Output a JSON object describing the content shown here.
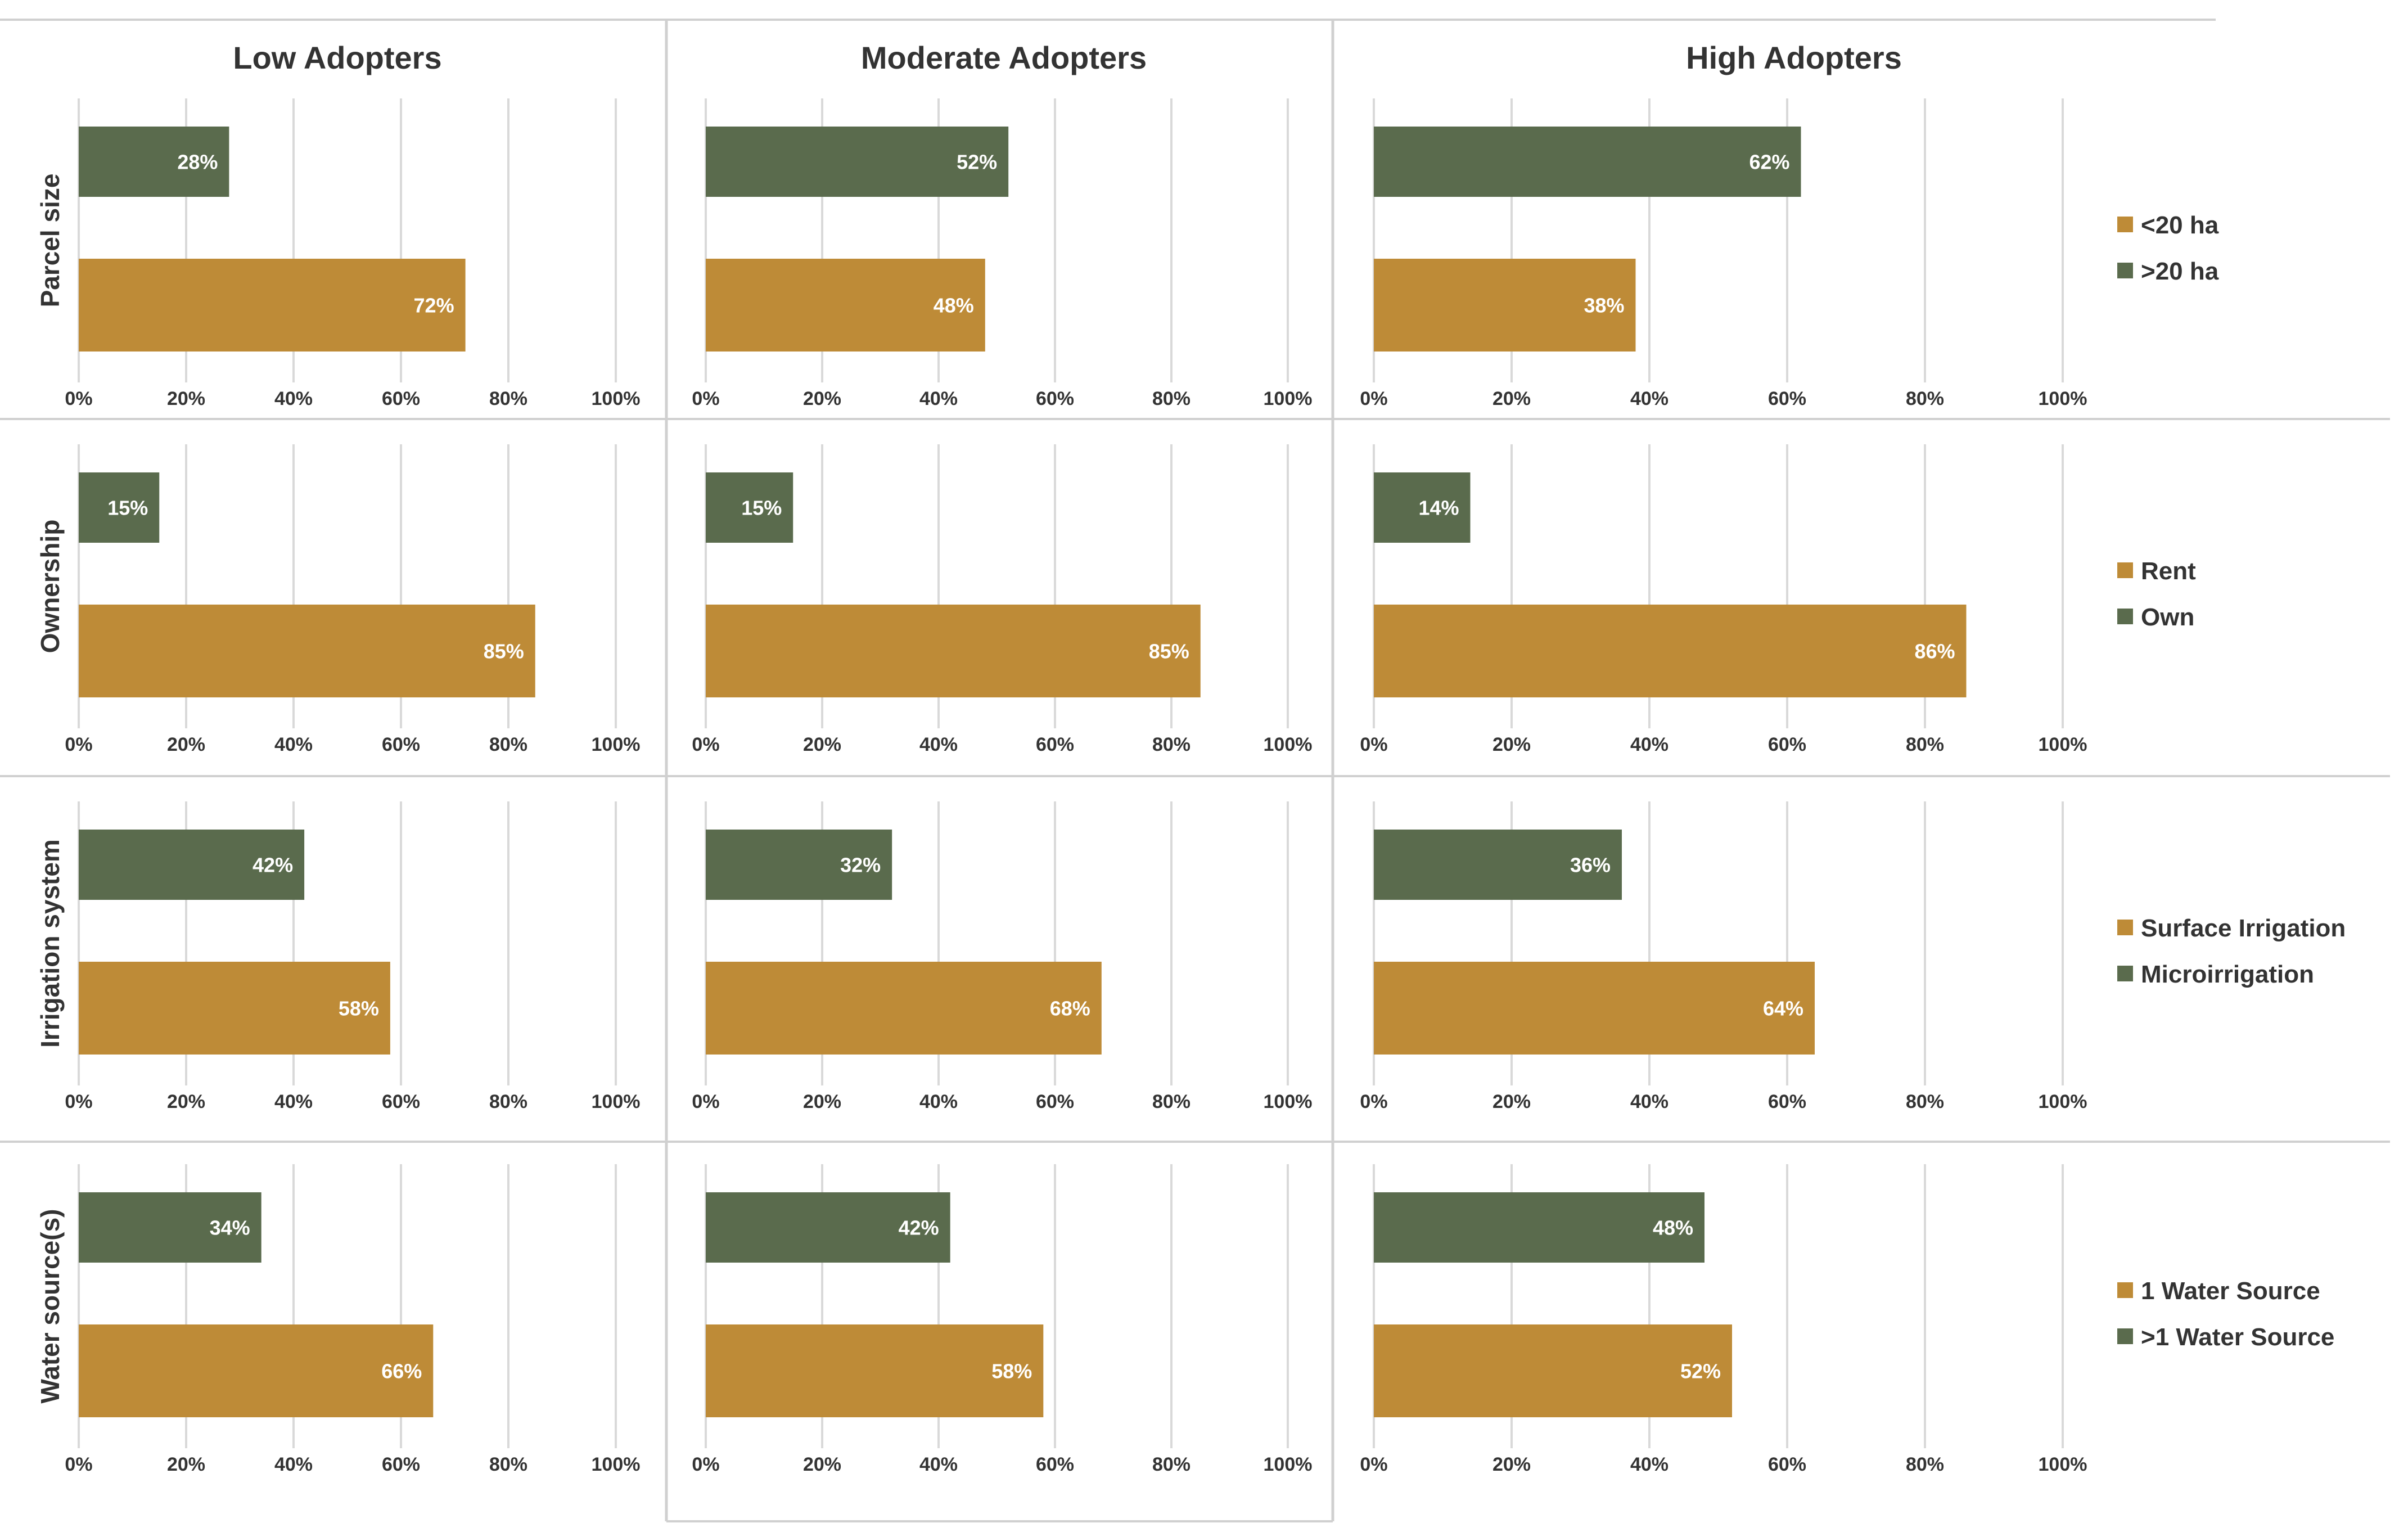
{
  "column_titles": [
    "Low Adopters",
    "Moderate Adopters",
    "High Adopters"
  ],
  "colors": {
    "gold": "#BE8B37",
    "green": "#5A6B4D",
    "grid": "#D9D9D9",
    "frame": "#D0D0D0"
  },
  "chart_data": [
    {
      "type": "bar",
      "orientation": "horizontal",
      "row_label": "Parcel size",
      "legend": [
        {
          "label": "<20  ha",
          "color": "#BE8B37"
        },
        {
          "label": ">20  ha",
          "color": "#5A6B4D"
        }
      ],
      "x_ticks": [
        "0%",
        "20%",
        "40%",
        "60%",
        "80%",
        "100%"
      ],
      "xlim": [
        0,
        100
      ],
      "series": [
        {
          "name": "<20  ha",
          "values": [
            72,
            48,
            38
          ],
          "labels": [
            "72%",
            "48%",
            "38%"
          ]
        },
        {
          "name": ">20  ha",
          "values": [
            28,
            52,
            62
          ],
          "labels": [
            "28%",
            "52%",
            "62%"
          ]
        }
      ]
    },
    {
      "type": "bar",
      "orientation": "horizontal",
      "row_label": "Ownership",
      "legend": [
        {
          "label": "Rent",
          "color": "#BE8B37"
        },
        {
          "label": "Own",
          "color": "#5A6B4D"
        }
      ],
      "x_ticks": [
        "0%",
        "20%",
        "40%",
        "60%",
        "80%",
        "100%"
      ],
      "xlim": [
        0,
        100
      ],
      "series": [
        {
          "name": "Rent",
          "values": [
            85,
            85,
            86
          ],
          "labels": [
            "85%",
            "85%",
            "86%"
          ]
        },
        {
          "name": "Own",
          "values": [
            15,
            15,
            14
          ],
          "labels": [
            "15%",
            "15%",
            "14%"
          ]
        }
      ]
    },
    {
      "type": "bar",
      "orientation": "horizontal",
      "row_label": "Irrigation system",
      "legend": [
        {
          "label": "Surface Irrigation",
          "color": "#BE8B37"
        },
        {
          "label": "Microirrigation",
          "color": "#5A6B4D"
        }
      ],
      "x_ticks": [
        "0%",
        "20%",
        "40%",
        "60%",
        "80%",
        "100%"
      ],
      "xlim": [
        0,
        100
      ],
      "series": [
        {
          "name": "Surface Irrigation",
          "values": [
            58,
            68,
            64
          ],
          "labels": [
            "58%",
            "68%",
            "64%"
          ]
        },
        {
          "name": "Microirrigation",
          "values": [
            42,
            32,
            36
          ],
          "labels": [
            "42%",
            "32%",
            "36%"
          ]
        }
      ]
    },
    {
      "type": "bar",
      "orientation": "horizontal",
      "row_label": "Water source(s)",
      "legend": [
        {
          "label": "1 Water Source",
          "color": "#BE8B37"
        },
        {
          "label": ">1 Water Source",
          "color": "#5A6B4D"
        }
      ],
      "x_ticks": [
        "0%",
        "20%",
        "40%",
        "60%",
        "80%",
        "100%"
      ],
      "xlim": [
        0,
        100
      ],
      "series": [
        {
          "name": "1 Water Source",
          "values": [
            66,
            58,
            52
          ],
          "labels": [
            "66%",
            "58%",
            "52%"
          ]
        },
        {
          "name": ">1 Water Source",
          "values": [
            34,
            42,
            48
          ],
          "labels": [
            "34%",
            "42%",
            "48%"
          ]
        }
      ]
    }
  ]
}
